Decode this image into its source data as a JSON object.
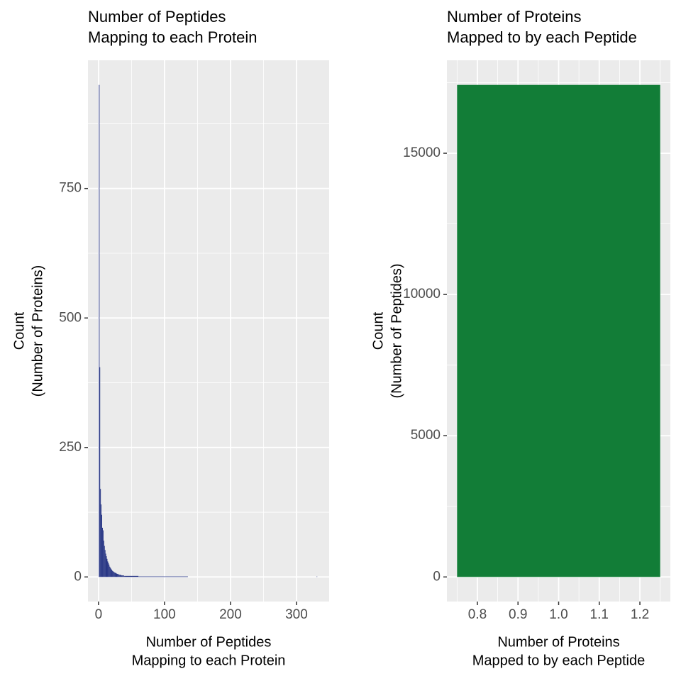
{
  "chart_data": [
    {
      "type": "histogram",
      "title": [
        "Number of Peptides",
        "Mapping to each Protein"
      ],
      "x_label": [
        "Number of Peptides",
        "Mapping to each Protein"
      ],
      "y_label": [
        "Count",
        "(Number of Proteins)"
      ],
      "color": "#233182",
      "bins": [
        0.5,
        1.5,
        2.5,
        3.5,
        4.5,
        5.5,
        6.5,
        7.5,
        8.5,
        9.5,
        10.5,
        11.5,
        12.5,
        13.5,
        14.5,
        15.5,
        16.5,
        17.5,
        18.5,
        19.5,
        20.5,
        21.5,
        22.5,
        23.5,
        24.5,
        25.5,
        26.5,
        27.5,
        28.5,
        29.5,
        30.5,
        31.5,
        32.5,
        33.5,
        34.5,
        35.5,
        36.5,
        37.5,
        38.5,
        39.5,
        40.5,
        60.5,
        100.5,
        135.5,
        330.5,
        331.5
      ],
      "values": [
        950,
        405,
        170,
        140,
        120,
        95,
        90,
        70,
        60,
        52,
        45,
        40,
        35,
        30,
        27,
        24,
        20,
        18,
        16,
        14,
        12,
        11,
        10,
        9,
        8,
        8,
        7,
        6,
        6,
        5,
        5,
        4,
        4,
        4,
        3,
        3,
        3,
        3,
        2,
        2,
        2,
        1,
        1,
        0,
        1
      ],
      "xlim": [
        -16,
        349.5
      ],
      "xticks": [
        0,
        100,
        200,
        300
      ],
      "ylim": [
        -47.5,
        997.5
      ],
      "yticks": [
        0,
        250,
        500,
        750
      ],
      "grid": true
    },
    {
      "type": "histogram",
      "title": [
        "Number of Proteins",
        "Mapped to by each Peptide"
      ],
      "x_label": [
        "Number of Proteins",
        "Mapped to by each Peptide"
      ],
      "y_label": [
        "Count",
        "(Number of Peptides)"
      ],
      "color": "#127d37",
      "bins": [
        0.75,
        1.25
      ],
      "values": [
        17420
      ],
      "xlim": [
        0.725,
        1.275
      ],
      "xticks": [
        0.8,
        0.9,
        {
          "value": 1,
          "label": "1.0"
        },
        1.1,
        1.2
      ],
      "ylim": [
        -871,
        18291
      ],
      "yticks": [
        0,
        5000,
        10000,
        15000
      ],
      "grid": true
    }
  ]
}
